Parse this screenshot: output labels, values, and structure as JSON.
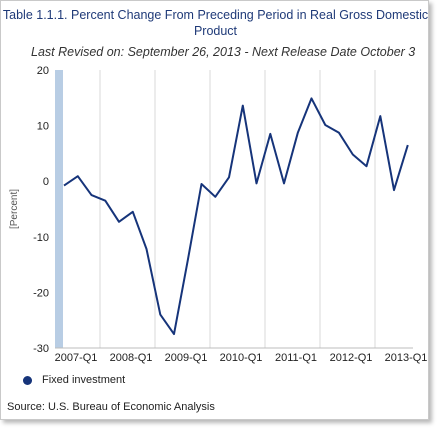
{
  "title": "Table 1.1.1. Percent Change From Preceding Period in Real Gross Domestic Product",
  "subtitle": "Last Revised on: September 26, 2013 - Next Release Date October 3",
  "source": "Source: U.S. Bureau of Economic Analysis",
  "colors": {
    "series": "#16347a",
    "axis_band": "#b8cde4",
    "grid": "#d9d9d9"
  },
  "chart_data": {
    "type": "line",
    "ylabel": "[Percent]",
    "xlabel": "",
    "ylim": [
      -30,
      20
    ],
    "yticks": [
      20,
      10,
      0,
      -10,
      -20,
      -30
    ],
    "xticks": [
      "2007-Q1",
      "2008-Q1",
      "2009-Q1",
      "2010-Q1",
      "2011-Q1",
      "2012-Q1",
      "2013-Q1"
    ],
    "grid": "vertical",
    "legend_position": "bottom-left",
    "series": [
      {
        "name": "Fixed investment",
        "x": [
          "2007-Q1",
          "2007-Q2",
          "2007-Q3",
          "2007-Q4",
          "2008-Q1",
          "2008-Q2",
          "2008-Q3",
          "2008-Q4",
          "2009-Q1",
          "2009-Q2",
          "2009-Q3",
          "2009-Q4",
          "2010-Q1",
          "2010-Q2",
          "2010-Q3",
          "2010-Q4",
          "2011-Q1",
          "2011-Q2",
          "2011-Q3",
          "2011-Q4",
          "2012-Q1",
          "2012-Q2",
          "2012-Q3",
          "2012-Q4",
          "2013-Q1",
          "2013-Q2"
        ],
        "values": [
          -0.8,
          0.9,
          -2.5,
          -3.5,
          -7.3,
          -5.5,
          -12.2,
          -24.0,
          -27.5,
          -14.2,
          -0.5,
          -2.8,
          0.7,
          13.6,
          -0.4,
          8.5,
          -0.4,
          8.7,
          14.9,
          10.1,
          8.7,
          4.8,
          2.7,
          11.7,
          -1.6,
          6.5
        ]
      }
    ]
  }
}
